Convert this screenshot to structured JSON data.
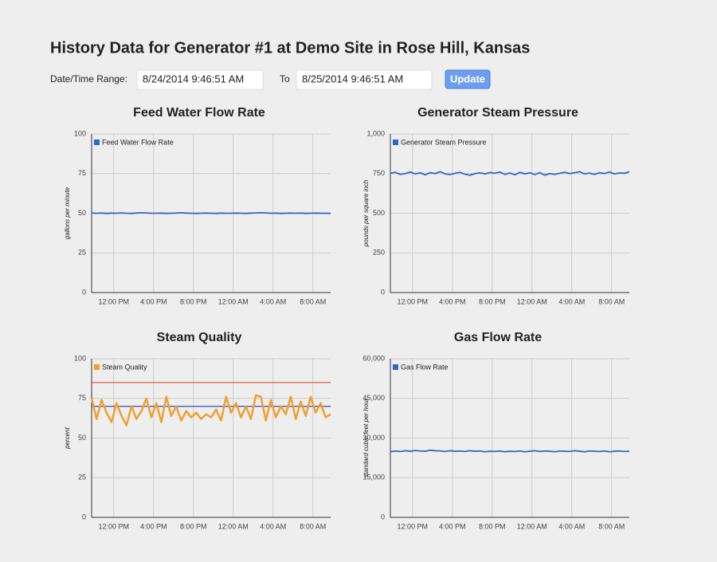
{
  "header": {
    "title": "History Data for Generator #1 at Demo Site in Rose Hill, Kansas"
  },
  "form": {
    "range_label": "Date/Time Range:",
    "from": "8/24/2014 9:46:51 AM",
    "to_label": "To",
    "to": "8/25/2014 9:46:51 AM",
    "button": "Update"
  },
  "chart_data": [
    {
      "type": "line",
      "title": "Feed Water Flow Rate",
      "y_label": "gallons per minute",
      "x": [
        0,
        0.5,
        1,
        1.5,
        2,
        2.5,
        3,
        3.5,
        4,
        4.5,
        5,
        5.5,
        6,
        6.5,
        7,
        7.5,
        8,
        8.5,
        9,
        9.5,
        10,
        10.5,
        11,
        11.5,
        12,
        12.5,
        13,
        13.5,
        14,
        14.5,
        15,
        15.5,
        16,
        16.5,
        17,
        17.5,
        18,
        18.5,
        19,
        19.5,
        20,
        20.5,
        21,
        21.5,
        22,
        22.5,
        23,
        23.5,
        24
      ],
      "series": [
        {
          "name": "Feed Water Flow Rate",
          "color": "#3366cc",
          "values": [
            50.2,
            50,
            50.1,
            49.9,
            50.1,
            50,
            50.2,
            50,
            49.9,
            50.1,
            50.3,
            50.2,
            50,
            50,
            50.1,
            49.9,
            50,
            50.1,
            50.3,
            50.1,
            50,
            49.9,
            50,
            50.1,
            50,
            49.9,
            50.1,
            50,
            50,
            50.1,
            50,
            49.9,
            50.1,
            50.2,
            50.3,
            50.2,
            50,
            50.1,
            49.9,
            50,
            50.1,
            50,
            50.1,
            49.9,
            50,
            50.1,
            50,
            50,
            49.9
          ]
        }
      ],
      "xlim": [
        0,
        24
      ],
      "xticks": [
        {
          "value": 2.219,
          "label": "12:00 PM"
        },
        {
          "value": 6.219,
          "label": "4:00 PM"
        },
        {
          "value": 10.219,
          "label": "8:00 PM"
        },
        {
          "value": 14.219,
          "label": "12:00 AM"
        },
        {
          "value": 18.219,
          "label": "4:00 AM"
        },
        {
          "value": 22.219,
          "label": "8:00 AM"
        }
      ],
      "ylim": [
        0,
        100
      ],
      "yticks": [
        0,
        25,
        50,
        75,
        100
      ],
      "grid": true,
      "legend": "top-left"
    },
    {
      "type": "line",
      "title": "Generator Steam Pressure",
      "y_label": "pounds per square inch",
      "x": [
        0,
        0.5,
        1,
        1.5,
        2,
        2.5,
        3,
        3.5,
        4,
        4.5,
        5,
        5.5,
        6,
        6.5,
        7,
        7.5,
        8,
        8.5,
        9,
        9.5,
        10,
        10.5,
        11,
        11.5,
        12,
        12.5,
        13,
        13.5,
        14,
        14.5,
        15,
        15.5,
        16,
        16.5,
        17,
        17.5,
        18,
        18.5,
        19,
        19.5,
        20,
        20.5,
        21,
        21.5,
        22,
        22.5,
        23,
        23.5,
        24
      ],
      "series": [
        {
          "name": "Generator Steam Pressure",
          "color": "#3366cc",
          "values": [
            752,
            758,
            745,
            750,
            760,
            748,
            755,
            742,
            756,
            750,
            762,
            748,
            744,
            752,
            758,
            746,
            740,
            750,
            755,
            748,
            757,
            752,
            760,
            745,
            754,
            742,
            758,
            748,
            755,
            744,
            756,
            740,
            750,
            745,
            752,
            758,
            750,
            755,
            762,
            748,
            753,
            745,
            756,
            750,
            760,
            748,
            754,
            752,
            762
          ]
        }
      ],
      "xlim": [
        0,
        24
      ],
      "xticks": [
        {
          "value": 2.219,
          "label": "12:00 PM"
        },
        {
          "value": 6.219,
          "label": "4:00 PM"
        },
        {
          "value": 10.219,
          "label": "8:00 PM"
        },
        {
          "value": 14.219,
          "label": "12:00 AM"
        },
        {
          "value": 18.219,
          "label": "4:00 AM"
        },
        {
          "value": 22.219,
          "label": "8:00 AM"
        }
      ],
      "ylim": [
        0,
        1000
      ],
      "yticks": [
        0,
        250,
        500,
        750,
        {
          "value": 1000,
          "label": "1,000"
        }
      ],
      "grid": true,
      "legend": "top-left"
    },
    {
      "type": "line",
      "title": "Steam Quality",
      "y_label": "percent",
      "x": [
        0,
        0.5,
        1,
        1.5,
        2,
        2.5,
        3,
        3.5,
        4,
        4.5,
        5,
        5.5,
        6,
        6.5,
        7,
        7.5,
        8,
        8.5,
        9,
        9.5,
        10,
        10.5,
        11,
        11.5,
        12,
        12.5,
        13,
        13.5,
        14,
        14.5,
        15,
        15.5,
        16,
        16.5,
        17,
        17.5,
        18,
        18.5,
        19,
        19.5,
        20,
        20.5,
        21,
        21.5,
        22,
        22.5,
        23,
        23.5,
        24
      ],
      "series": [
        {
          "name": "Steam Quality",
          "color": "#f0a030",
          "values": [
            75,
            62,
            74,
            66,
            60,
            72,
            64,
            58,
            70,
            62,
            67,
            75,
            63,
            72,
            60,
            76,
            64,
            70,
            61,
            67,
            63,
            66,
            62,
            65,
            63,
            68,
            61,
            76,
            66,
            72,
            63,
            70,
            62,
            77,
            76,
            61,
            74,
            63,
            70,
            65,
            76,
            62,
            73,
            64,
            76,
            66,
            72,
            63,
            65
          ]
        }
      ],
      "reference_lines": [
        {
          "value": 85,
          "color": "#e8584a"
        },
        {
          "value": 70,
          "color": "#3b5cc4"
        }
      ],
      "xlim": [
        0,
        24
      ],
      "xticks": [
        {
          "value": 2.219,
          "label": "12:00 PM"
        },
        {
          "value": 6.219,
          "label": "4:00 PM"
        },
        {
          "value": 10.219,
          "label": "8:00 PM"
        },
        {
          "value": 14.219,
          "label": "12:00 AM"
        },
        {
          "value": 18.219,
          "label": "4:00 AM"
        },
        {
          "value": 22.219,
          "label": "8:00 AM"
        }
      ],
      "ylim": [
        0,
        100
      ],
      "yticks": [
        0,
        25,
        50,
        75,
        100
      ],
      "grid": true,
      "legend": "top-left"
    },
    {
      "type": "line",
      "title": "Gas Flow Rate",
      "y_label": "standard cubic feet per hour",
      "x": [
        0,
        0.5,
        1,
        1.5,
        2,
        2.5,
        3,
        3.5,
        4,
        4.5,
        5,
        5.5,
        6,
        6.5,
        7,
        7.5,
        8,
        8.5,
        9,
        9.5,
        10,
        10.5,
        11,
        11.5,
        12,
        12.5,
        13,
        13.5,
        14,
        14.5,
        15,
        15.5,
        16,
        16.5,
        17,
        17.5,
        18,
        18.5,
        19,
        19.5,
        20,
        20.5,
        21,
        21.5,
        22,
        22.5,
        23,
        23.5,
        24
      ],
      "series": [
        {
          "name": "Gas Flow Rate",
          "color": "#3366cc",
          "values": [
            24800,
            25100,
            24900,
            25200,
            25000,
            25300,
            25100,
            25000,
            25400,
            25200,
            25100,
            24900,
            25200,
            25000,
            25100,
            24900,
            25200,
            25000,
            25100,
            24800,
            25000,
            24900,
            25100,
            24800,
            25000,
            24900,
            25100,
            24800,
            25000,
            25200,
            24900,
            25100,
            25000,
            24800,
            25100,
            25000,
            24900,
            25200,
            25000,
            24800,
            25100,
            25000,
            24900,
            25100,
            24800,
            25000,
            25100,
            24900,
            25000
          ]
        }
      ],
      "xlim": [
        0,
        24
      ],
      "xticks": [
        {
          "value": 2.219,
          "label": "12:00 PM"
        },
        {
          "value": 6.219,
          "label": "4:00 PM"
        },
        {
          "value": 10.219,
          "label": "8:00 PM"
        },
        {
          "value": 14.219,
          "label": "12:00 AM"
        },
        {
          "value": 18.219,
          "label": "4:00 AM"
        },
        {
          "value": 22.219,
          "label": "8:00 AM"
        }
      ],
      "ylim": [
        0,
        60000
      ],
      "yticks": [
        0,
        {
          "value": 15000,
          "label": "15,000"
        },
        {
          "value": 30000,
          "label": "30,000"
        },
        {
          "value": 45000,
          "label": "45,000"
        },
        {
          "value": 60000,
          "label": "60,000"
        }
      ],
      "grid": true,
      "legend": "top-left"
    }
  ]
}
